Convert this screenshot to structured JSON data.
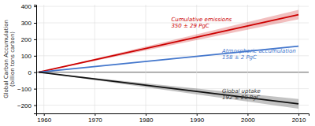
{
  "chart_data": {
    "type": "line",
    "ylabel": "Global Carbon Accumulation\n(billion tons carbon)",
    "x": [
      1959,
      2010
    ],
    "series": [
      {
        "color": "#cc0000",
        "values": [
          0,
          350
        ],
        "uncertainty": [
          0,
          29
        ]
      },
      {
        "color": "#4477cc",
        "values": [
          0,
          158
        ],
        "uncertainty": [
          0,
          2
        ]
      },
      {
        "color": "#111111",
        "values": [
          0,
          -192
        ],
        "uncertainty": [
          0,
          29
        ]
      }
    ],
    "annotations": [
      {
        "text": [
          "Cumulative emissions",
          "350 ± 29 PgC"
        ],
        "x": 1985,
        "y": 310,
        "color": "#cc0000"
      },
      {
        "text": [
          "Atmospheric accumulation",
          "158 ± 2 PgC"
        ],
        "x": 1995,
        "y": 118,
        "color": "#4477cc"
      },
      {
        "text": [
          "Global uptake",
          "192 ± 29 PgC"
        ],
        "x": 1995,
        "y": -125,
        "color": "#333333"
      }
    ],
    "xlim": [
      1958.5,
      2012
    ],
    "ylim": [
      -250,
      410
    ],
    "xticks": [
      1960,
      1970,
      1980,
      1990,
      2000,
      2010
    ],
    "yticks": [
      -200,
      -100,
      0,
      100,
      200,
      300,
      400
    ],
    "grid": true
  }
}
